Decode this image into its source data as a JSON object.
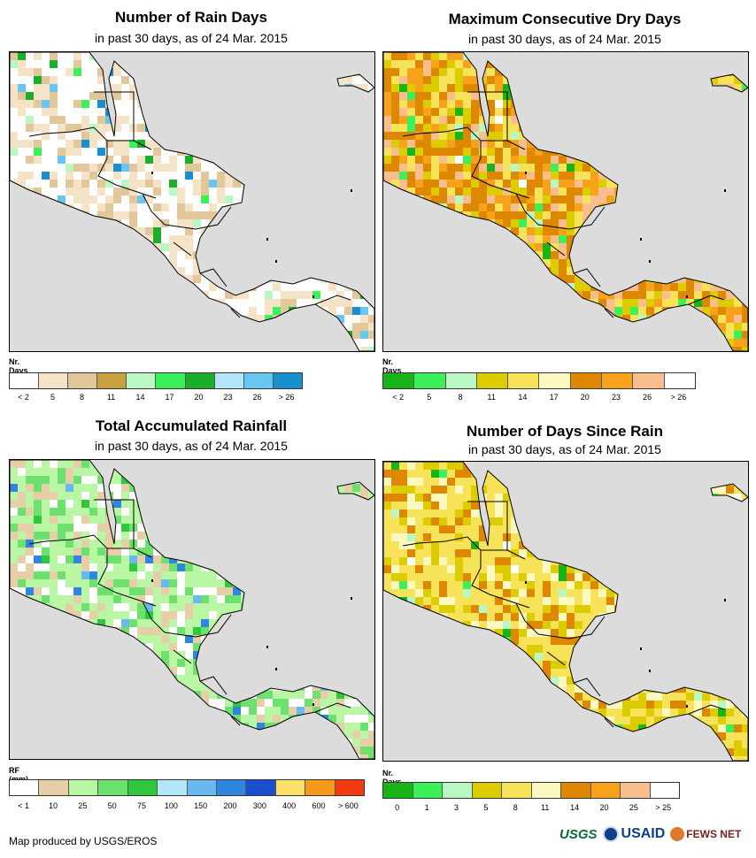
{
  "colors": {
    "ocean": "#dcdcdc",
    "border": "#000000"
  },
  "panels": [
    {
      "id": "rain-days",
      "title": "Number of Rain Days",
      "subtitle": "in past 30 days, as of 24 Mar. 2015",
      "legend_title": "Nr. Days",
      "legend_colors": [
        "#ffffff",
        "#f5e3c8",
        "#e2c79a",
        "#c9a040",
        "#b9f7c3",
        "#3cf05a",
        "#1aae2a",
        "#b3e6fa",
        "#69c6f0",
        "#1a8fd0"
      ],
      "legend_ticks": [
        "< 2",
        "5",
        "8",
        "11",
        "14",
        "17",
        "20",
        "23",
        "26",
        "> 26"
      ],
      "land_palette": [
        "#ffffff",
        "#ffffff",
        "#ffffff",
        "#f5e3c8",
        "#f5e3c8",
        "#e2c79a"
      ],
      "accent_palette": [
        "#3cf05a",
        "#1aae2a",
        "#69c6f0",
        "#1a8fd0",
        "#b9f7c3"
      ]
    },
    {
      "id": "max-dry-days",
      "title": "Maximum Consecutive Dry Days",
      "subtitle": "in past 30 days, as of 24 Mar. 2015",
      "legend_title": "Nr. Days",
      "legend_colors": [
        "#18b418",
        "#3cf05a",
        "#b9f7c3",
        "#dccc00",
        "#f7e35a",
        "#fbf8c0",
        "#dd8800",
        "#f7a21a",
        "#f9be8d",
        "#ffffff"
      ],
      "legend_ticks": [
        "< 2",
        "5",
        "8",
        "11",
        "14",
        "17",
        "20",
        "23",
        "26",
        "> 26"
      ],
      "land_palette": [
        "#dd8800",
        "#f7a21a",
        "#dd8800",
        "#dccc00",
        "#f7e35a",
        "#f9be8d"
      ],
      "accent_palette": [
        "#3cf05a",
        "#18b418",
        "#b9f7c3",
        "#ffffff"
      ]
    },
    {
      "id": "total-rainfall",
      "title": "Total Accumulated Rainfall",
      "subtitle": "in past 30 days, as of 24 Mar. 2015",
      "legend_title": "RF (mm)",
      "legend_colors": [
        "#ffffff",
        "#e6cfa6",
        "#b9f7a5",
        "#6ee06e",
        "#2fc83a",
        "#b3e6fa",
        "#69b8f0",
        "#2e86e0",
        "#1a50d0",
        "#fbe06a",
        "#f79a1a",
        "#f33a10"
      ],
      "legend_ticks": [
        "< 1",
        "10",
        "25",
        "50",
        "75",
        "100",
        "150",
        "200",
        "300",
        "400",
        "600",
        "> 600"
      ],
      "land_palette": [
        "#b9f7a5",
        "#b9f7a5",
        "#6ee06e",
        "#b9f7a5",
        "#e6cfa6",
        "#ffffff"
      ],
      "accent_palette": [
        "#2fc83a",
        "#69b8f0",
        "#2e86e0",
        "#6ee06e"
      ]
    },
    {
      "id": "days-since-rain",
      "title": "Number of Days Since Rain",
      "subtitle": "in past 30 days, as of 24 Mar. 2015",
      "legend_title": "Nr. Days",
      "legend_colors": [
        "#18b418",
        "#3cf05a",
        "#b9f7c3",
        "#dccc00",
        "#f7e35a",
        "#fbf8c0",
        "#dd8800",
        "#f7a21a",
        "#f9be8d",
        "#ffffff"
      ],
      "legend_ticks": [
        "0",
        "1",
        "3",
        "5",
        "8",
        "11",
        "14",
        "20",
        "25",
        "> 25"
      ],
      "land_palette": [
        "#f7e35a",
        "#f7e35a",
        "#dccc00",
        "#f7e35a",
        "#fbf8c0",
        "#dd8800"
      ],
      "accent_palette": [
        "#3cf05a",
        "#18b418",
        "#b9f7c3",
        "#ffffff"
      ]
    }
  ],
  "footer": {
    "credit": "Map produced by USGS/EROS",
    "logo_usgs": "USGS",
    "logo_usaid": "USAID",
    "logo_fews": "FEWS NET"
  }
}
